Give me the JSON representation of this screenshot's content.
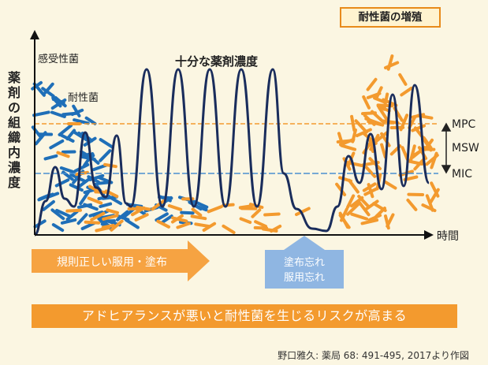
{
  "figure": {
    "title_resistant_increase": "耐性菌の増殖",
    "y_axis_label": "薬剤の組織内濃度",
    "x_axis_label": "時間",
    "label_susceptible": "感受性菌",
    "label_resistant": "耐性菌",
    "label_sufficient": "十分な薬剤濃度",
    "threshold_mpc": "MPC",
    "threshold_msw": "MSW",
    "threshold_mic": "MIC",
    "arrow_regular": "規則正しい服用・塗布",
    "arrow_missed_line1": "塗布忘れ",
    "arrow_missed_line2": "服用忘れ",
    "banner": "アドヒアランスが悪いと耐性菌を生じるリスクが高まる",
    "source": "野口雅久: 薬局 68: 491-495, 2017より作図"
  },
  "colors": {
    "susceptible": "#1f6fb8",
    "resistant": "#f39a2e",
    "curve": "#1a2d5c",
    "mpc_line": "#f39a2e",
    "mic_line": "#4a8fd0",
    "missed_arrow": "#8fb6e2",
    "background": "#fbf6e2"
  }
}
